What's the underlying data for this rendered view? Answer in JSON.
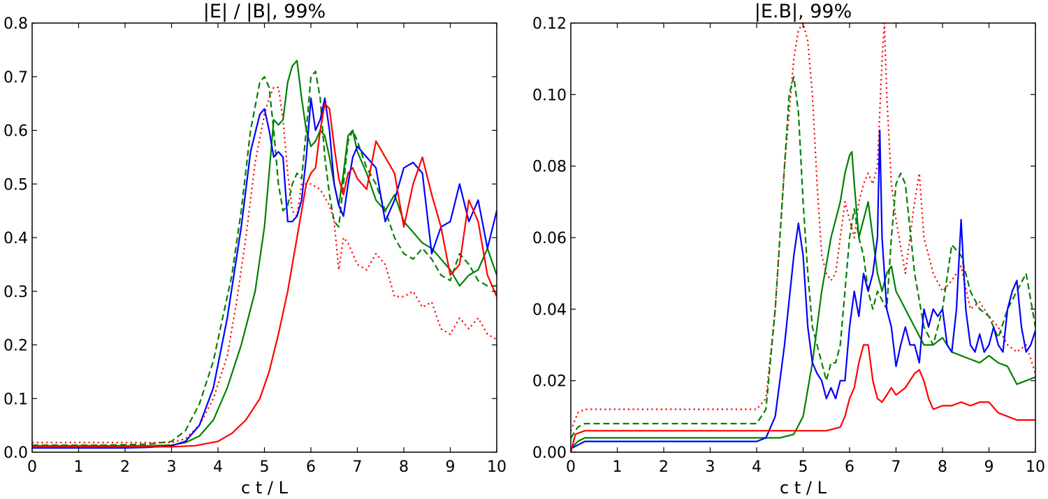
{
  "chart_data": [
    {
      "type": "line",
      "title": "|E| / |B|, 99%",
      "xlabel": "c t / L",
      "ylabel": "",
      "xlim": [
        0,
        10
      ],
      "ylim": [
        0,
        0.8
      ],
      "xticks": [
        "0",
        "1",
        "2",
        "3",
        "4",
        "5",
        "6",
        "7",
        "8",
        "9",
        "10"
      ],
      "yticks": [
        "0.0",
        "0.1",
        "0.2",
        "0.3",
        "0.4",
        "0.5",
        "0.6",
        "0.7",
        "0.8"
      ],
      "grid": false,
      "series": [
        {
          "color": "#008000",
          "dash": "dashed",
          "x": [
            0,
            0.5,
            1,
            1.5,
            2,
            2.5,
            3,
            3.3,
            3.6,
            3.9,
            4.1,
            4.3,
            4.5,
            4.7,
            4.9,
            5.0,
            5.1,
            5.2,
            5.3,
            5.4,
            5.5,
            5.6,
            5.7,
            5.8,
            5.9,
            6.0,
            6.1,
            6.2,
            6.3,
            6.4,
            6.5,
            6.6,
            6.7,
            6.8,
            6.9,
            7.0,
            7.2,
            7.4,
            7.6,
            7.8,
            8.0,
            8.2,
            8.4,
            8.6,
            8.8,
            9.0,
            9.2,
            9.4,
            9.6,
            9.8,
            10.0
          ],
          "y": [
            0.013,
            0.013,
            0.013,
            0.013,
            0.014,
            0.015,
            0.02,
            0.04,
            0.09,
            0.17,
            0.25,
            0.33,
            0.45,
            0.6,
            0.69,
            0.7,
            0.68,
            0.6,
            0.5,
            0.45,
            0.46,
            0.5,
            0.52,
            0.51,
            0.6,
            0.7,
            0.71,
            0.66,
            0.55,
            0.48,
            0.43,
            0.42,
            0.5,
            0.58,
            0.6,
            0.58,
            0.53,
            0.5,
            0.45,
            0.4,
            0.37,
            0.36,
            0.38,
            0.36,
            0.33,
            0.32,
            0.37,
            0.35,
            0.32,
            0.31,
            0.31
          ]
        },
        {
          "color": "#ff0000",
          "dash": "dotted",
          "x": [
            0,
            0.5,
            1,
            1.5,
            2,
            2.5,
            3,
            3.3,
            3.6,
            3.9,
            4.2,
            4.4,
            4.6,
            4.8,
            5.0,
            5.1,
            5.2,
            5.3,
            5.4,
            5.5,
            5.6,
            5.7,
            5.8,
            6.0,
            6.2,
            6.4,
            6.5,
            6.6,
            6.7,
            6.8,
            7.0,
            7.2,
            7.4,
            7.6,
            7.8,
            8.0,
            8.2,
            8.4,
            8.6,
            8.8,
            9.0,
            9.2,
            9.4,
            9.6,
            9.8,
            10.0
          ],
          "y": [
            0.018,
            0.018,
            0.018,
            0.018,
            0.018,
            0.018,
            0.018,
            0.025,
            0.05,
            0.1,
            0.18,
            0.28,
            0.4,
            0.54,
            0.63,
            0.66,
            0.68,
            0.68,
            0.62,
            0.52,
            0.45,
            0.44,
            0.5,
            0.5,
            0.49,
            0.46,
            0.43,
            0.34,
            0.4,
            0.39,
            0.35,
            0.34,
            0.37,
            0.35,
            0.29,
            0.29,
            0.3,
            0.27,
            0.28,
            0.23,
            0.22,
            0.25,
            0.23,
            0.25,
            0.22,
            0.21
          ]
        },
        {
          "color": "#008000",
          "dash": "solid",
          "x": [
            0,
            0.5,
            1,
            1.5,
            2,
            2.5,
            3,
            3.3,
            3.6,
            3.9,
            4.2,
            4.5,
            4.8,
            5.0,
            5.1,
            5.2,
            5.3,
            5.4,
            5.5,
            5.6,
            5.7,
            5.8,
            5.9,
            6.0,
            6.1,
            6.2,
            6.3,
            6.4,
            6.5,
            6.6,
            6.7,
            6.8,
            6.9,
            7.0,
            7.2,
            7.4,
            7.6,
            7.8,
            8.0,
            8.2,
            8.4,
            8.6,
            8.8,
            9.0,
            9.2,
            9.4,
            9.6,
            9.8,
            10.0
          ],
          "y": [
            0.012,
            0.012,
            0.012,
            0.012,
            0.012,
            0.012,
            0.013,
            0.018,
            0.03,
            0.06,
            0.12,
            0.2,
            0.3,
            0.42,
            0.52,
            0.62,
            0.61,
            0.62,
            0.69,
            0.72,
            0.73,
            0.66,
            0.6,
            0.57,
            0.58,
            0.6,
            0.59,
            0.55,
            0.5,
            0.46,
            0.52,
            0.59,
            0.6,
            0.56,
            0.52,
            0.47,
            0.45,
            0.48,
            0.43,
            0.41,
            0.39,
            0.38,
            0.36,
            0.34,
            0.31,
            0.33,
            0.34,
            0.38,
            0.33
          ]
        },
        {
          "color": "#0000ff",
          "dash": "solid",
          "x": [
            0,
            0.5,
            1,
            1.5,
            2,
            2.5,
            3,
            3.3,
            3.6,
            3.9,
            4.2,
            4.5,
            4.7,
            4.9,
            5.0,
            5.1,
            5.2,
            5.3,
            5.4,
            5.5,
            5.6,
            5.7,
            5.8,
            5.9,
            6.0,
            6.1,
            6.2,
            6.3,
            6.4,
            6.5,
            6.6,
            6.7,
            6.8,
            6.9,
            7.0,
            7.2,
            7.4,
            7.6,
            7.8,
            8.0,
            8.2,
            8.4,
            8.6,
            8.8,
            9.0,
            9.2,
            9.4,
            9.6,
            9.8,
            10.0
          ],
          "y": [
            0.008,
            0.008,
            0.008,
            0.008,
            0.008,
            0.009,
            0.012,
            0.02,
            0.05,
            0.12,
            0.25,
            0.42,
            0.56,
            0.63,
            0.64,
            0.6,
            0.55,
            0.56,
            0.55,
            0.43,
            0.43,
            0.44,
            0.47,
            0.55,
            0.66,
            0.6,
            0.62,
            0.66,
            0.6,
            0.5,
            0.46,
            0.44,
            0.5,
            0.55,
            0.57,
            0.55,
            0.53,
            0.43,
            0.47,
            0.53,
            0.54,
            0.52,
            0.37,
            0.42,
            0.43,
            0.5,
            0.43,
            0.47,
            0.38,
            0.45
          ]
        },
        {
          "color": "#ff0000",
          "dash": "solid",
          "x": [
            0,
            0.5,
            1,
            1.5,
            2,
            2.5,
            3,
            3.5,
            4.0,
            4.3,
            4.6,
            4.9,
            5.1,
            5.3,
            5.5,
            5.7,
            5.9,
            6.0,
            6.1,
            6.2,
            6.3,
            6.4,
            6.5,
            6.6,
            6.7,
            6.8,
            6.9,
            7.0,
            7.2,
            7.4,
            7.6,
            7.8,
            8.0,
            8.2,
            8.4,
            8.6,
            8.8,
            9.0,
            9.2,
            9.4,
            9.6,
            9.8,
            10.0
          ],
          "y": [
            0.01,
            0.01,
            0.01,
            0.01,
            0.01,
            0.01,
            0.01,
            0.012,
            0.02,
            0.035,
            0.06,
            0.1,
            0.15,
            0.22,
            0.3,
            0.4,
            0.5,
            0.52,
            0.53,
            0.6,
            0.65,
            0.64,
            0.57,
            0.51,
            0.48,
            0.52,
            0.53,
            0.51,
            0.49,
            0.58,
            0.55,
            0.52,
            0.42,
            0.5,
            0.55,
            0.48,
            0.42,
            0.33,
            0.35,
            0.47,
            0.43,
            0.33,
            0.29
          ]
        }
      ]
    },
    {
      "type": "line",
      "title": "|E.B|, 99%",
      "xlabel": "c t / L",
      "ylabel": "",
      "xlim": [
        0,
        10
      ],
      "ylim": [
        0,
        0.12
      ],
      "xticks": [
        "0",
        "1",
        "2",
        "3",
        "4",
        "5",
        "6",
        "7",
        "8",
        "9",
        "10"
      ],
      "yticks": [
        "0.00",
        "0.02",
        "0.04",
        "0.06",
        "0.08",
        "0.10",
        "0.12"
      ],
      "grid": false,
      "series": [
        {
          "color": "#ff0000",
          "dash": "dotted",
          "x": [
            0,
            0.15,
            0.3,
            1,
            2,
            3,
            4,
            4.2,
            4.4,
            4.6,
            4.8,
            4.9,
            5.0,
            5.1,
            5.2,
            5.3,
            5.4,
            5.5,
            5.6,
            5.7,
            5.8,
            5.9,
            6.0,
            6.1,
            6.2,
            6.3,
            6.4,
            6.5,
            6.6,
            6.7,
            6.75,
            6.8,
            6.9,
            7.0,
            7.2,
            7.4,
            7.5,
            7.6,
            7.8,
            8.0,
            8.2,
            8.4,
            8.6,
            8.8,
            9.0,
            9.2,
            9.4,
            9.6,
            9.8,
            10.0
          ],
          "y": [
            0.006,
            0.011,
            0.012,
            0.012,
            0.012,
            0.012,
            0.012,
            0.015,
            0.04,
            0.08,
            0.11,
            0.118,
            0.12,
            0.115,
            0.1,
            0.075,
            0.055,
            0.05,
            0.048,
            0.05,
            0.06,
            0.07,
            0.065,
            0.06,
            0.07,
            0.075,
            0.078,
            0.075,
            0.08,
            0.11,
            0.12,
            0.1,
            0.075,
            0.065,
            0.05,
            0.07,
            0.078,
            0.06,
            0.05,
            0.045,
            0.048,
            0.052,
            0.04,
            0.042,
            0.038,
            0.035,
            0.03,
            0.028,
            0.03,
            0.022
          ]
        },
        {
          "color": "#008000",
          "dash": "dashed",
          "x": [
            0,
            0.15,
            0.3,
            1,
            2,
            3,
            4,
            4.2,
            4.4,
            4.6,
            4.7,
            4.8,
            4.9,
            5.0,
            5.1,
            5.2,
            5.3,
            5.4,
            5.5,
            5.6,
            5.7,
            5.8,
            5.9,
            6.0,
            6.1,
            6.2,
            6.3,
            6.4,
            6.5,
            6.6,
            6.8,
            6.9,
            7.0,
            7.1,
            7.2,
            7.4,
            7.6,
            7.8,
            8.0,
            8.2,
            8.4,
            8.6,
            8.8,
            9.0,
            9.2,
            9.4,
            9.6,
            9.8,
            10.0
          ],
          "y": [
            0.004,
            0.007,
            0.008,
            0.008,
            0.008,
            0.008,
            0.008,
            0.012,
            0.04,
            0.08,
            0.1,
            0.105,
            0.095,
            0.07,
            0.05,
            0.035,
            0.03,
            0.025,
            0.02,
            0.025,
            0.025,
            0.03,
            0.045,
            0.06,
            0.068,
            0.06,
            0.055,
            0.045,
            0.04,
            0.045,
            0.04,
            0.06,
            0.075,
            0.078,
            0.075,
            0.05,
            0.035,
            0.03,
            0.04,
            0.058,
            0.055,
            0.045,
            0.04,
            0.038,
            0.032,
            0.04,
            0.045,
            0.05,
            0.035
          ]
        },
        {
          "color": "#008000",
          "dash": "solid",
          "x": [
            0,
            0.15,
            0.3,
            1,
            2,
            3,
            4,
            4.5,
            4.8,
            5.0,
            5.2,
            5.4,
            5.6,
            5.8,
            5.9,
            6.0,
            6.05,
            6.1,
            6.2,
            6.3,
            6.4,
            6.5,
            6.6,
            6.7,
            6.8,
            6.9,
            7.0,
            7.2,
            7.4,
            7.6,
            7.8,
            8.0,
            8.2,
            8.4,
            8.6,
            8.8,
            9.0,
            9.2,
            9.4,
            9.6,
            9.8,
            10.0
          ],
          "y": [
            0.001,
            0.003,
            0.004,
            0.004,
            0.004,
            0.004,
            0.004,
            0.004,
            0.005,
            0.01,
            0.025,
            0.045,
            0.06,
            0.07,
            0.078,
            0.083,
            0.084,
            0.075,
            0.06,
            0.065,
            0.07,
            0.06,
            0.05,
            0.045,
            0.05,
            0.052,
            0.045,
            0.04,
            0.035,
            0.03,
            0.03,
            0.032,
            0.028,
            0.027,
            0.026,
            0.025,
            0.027,
            0.025,
            0.024,
            0.019,
            0.02,
            0.021
          ]
        },
        {
          "color": "#0000ff",
          "dash": "solid",
          "x": [
            0,
            0.15,
            0.3,
            1,
            2,
            3,
            4,
            4.2,
            4.4,
            4.6,
            4.8,
            4.9,
            5.0,
            5.1,
            5.2,
            5.3,
            5.4,
            5.5,
            5.6,
            5.7,
            5.8,
            5.9,
            6.0,
            6.1,
            6.2,
            6.3,
            6.4,
            6.5,
            6.6,
            6.65,
            6.7,
            6.8,
            6.9,
            7.0,
            7.1,
            7.2,
            7.3,
            7.4,
            7.5,
            7.6,
            7.7,
            7.8,
            7.9,
            8.0,
            8.1,
            8.2,
            8.3,
            8.4,
            8.5,
            8.6,
            8.7,
            8.8,
            8.9,
            9.0,
            9.1,
            9.2,
            9.3,
            9.4,
            9.5,
            9.6,
            9.7,
            9.8,
            9.9,
            10.0
          ],
          "y": [
            0.001,
            0.002,
            0.003,
            0.003,
            0.003,
            0.003,
            0.003,
            0.004,
            0.01,
            0.03,
            0.055,
            0.064,
            0.055,
            0.035,
            0.025,
            0.022,
            0.02,
            0.015,
            0.018,
            0.015,
            0.02,
            0.02,
            0.035,
            0.045,
            0.038,
            0.05,
            0.045,
            0.05,
            0.06,
            0.09,
            0.06,
            0.04,
            0.035,
            0.024,
            0.03,
            0.035,
            0.03,
            0.03,
            0.025,
            0.04,
            0.035,
            0.04,
            0.038,
            0.04,
            0.03,
            0.028,
            0.04,
            0.065,
            0.04,
            0.03,
            0.028,
            0.033,
            0.028,
            0.03,
            0.035,
            0.03,
            0.028,
            0.04,
            0.045,
            0.048,
            0.035,
            0.028,
            0.03,
            0.034
          ]
        },
        {
          "color": "#ff0000",
          "dash": "solid",
          "x": [
            0,
            0.1,
            0.3,
            1,
            2,
            3,
            4,
            4.5,
            5.0,
            5.5,
            5.8,
            5.9,
            6.0,
            6.1,
            6.2,
            6.3,
            6.4,
            6.5,
            6.6,
            6.7,
            6.8,
            6.9,
            7.0,
            7.2,
            7.4,
            7.5,
            7.6,
            7.7,
            7.8,
            8.0,
            8.2,
            8.4,
            8.6,
            8.8,
            9.0,
            9.2,
            9.4,
            9.6,
            9.8,
            10.0
          ],
          "y": [
            0.0,
            0.005,
            0.006,
            0.006,
            0.006,
            0.006,
            0.006,
            0.006,
            0.006,
            0.006,
            0.007,
            0.01,
            0.015,
            0.018,
            0.025,
            0.03,
            0.03,
            0.02,
            0.015,
            0.014,
            0.016,
            0.018,
            0.016,
            0.018,
            0.022,
            0.023,
            0.02,
            0.015,
            0.012,
            0.013,
            0.013,
            0.014,
            0.013,
            0.014,
            0.014,
            0.011,
            0.01,
            0.009,
            0.009,
            0.009
          ]
        }
      ]
    }
  ]
}
